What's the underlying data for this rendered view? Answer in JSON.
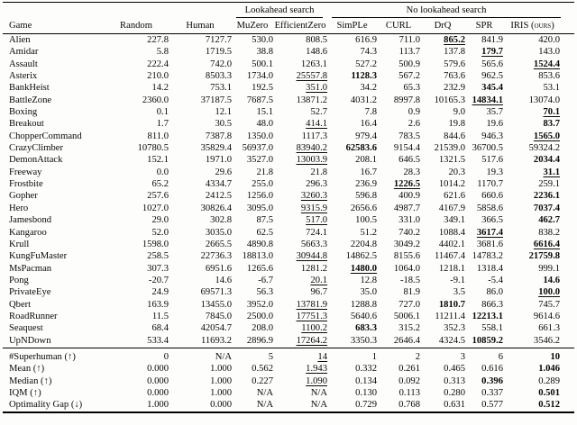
{
  "table": {
    "group_header": {
      "lookahead": "Lookahead search",
      "no_lookahead": "No lookahead search"
    },
    "columns": [
      "Game",
      "Random",
      "Human",
      "MuZero",
      "EfficientZero",
      "SimPLe",
      "CURL",
      "DrQ",
      "SPR",
      "IRIS (ours)"
    ],
    "rows": [
      {
        "cells": [
          "Alien",
          "227.8",
          "7127.7",
          "530.0",
          "808.5",
          "616.9",
          "711.0",
          "865.2",
          "841.9",
          "420.0"
        ],
        "styles": [
          "",
          "",
          "",
          "",
          "",
          "",
          "",
          "bu",
          "",
          ""
        ]
      },
      {
        "cells": [
          "Amidar",
          "5.8",
          "1719.5",
          "38.8",
          "148.6",
          "74.3",
          "113.7",
          "137.8",
          "179.7",
          "143.0"
        ],
        "styles": [
          "",
          "",
          "",
          "",
          "",
          "",
          "",
          "",
          "bu",
          ""
        ]
      },
      {
        "cells": [
          "Assault",
          "222.4",
          "742.0",
          "500.1",
          "1263.1",
          "527.2",
          "500.9",
          "579.6",
          "565.6",
          "1524.4"
        ],
        "styles": [
          "",
          "",
          "",
          "",
          "",
          "",
          "",
          "",
          "",
          "bu"
        ]
      },
      {
        "cells": [
          "Asterix",
          "210.0",
          "8503.3",
          "1734.0",
          "25557.8",
          "1128.3",
          "567.2",
          "763.6",
          "962.5",
          "853.6"
        ],
        "styles": [
          "",
          "",
          "",
          "",
          "u",
          "b",
          "",
          "",
          "",
          ""
        ]
      },
      {
        "cells": [
          "BankHeist",
          "14.2",
          "753.1",
          "192.5",
          "351.0",
          "34.2",
          "65.3",
          "232.9",
          "345.4",
          "53.1"
        ],
        "styles": [
          "",
          "",
          "",
          "",
          "u",
          "",
          "",
          "",
          "b",
          ""
        ]
      },
      {
        "cells": [
          "BattleZone",
          "2360.0",
          "37187.5",
          "7687.5",
          "13871.2",
          "4031.2",
          "8997.8",
          "10165.3",
          "14834.1",
          "13074.0"
        ],
        "styles": [
          "",
          "",
          "",
          "",
          "",
          "",
          "",
          "",
          "bu",
          ""
        ]
      },
      {
        "cells": [
          "Boxing",
          "0.1",
          "12.1",
          "15.1",
          "52.7",
          "7.8",
          "0.9",
          "9.0",
          "35.7",
          "70.1"
        ],
        "styles": [
          "",
          "",
          "",
          "",
          "",
          "",
          "",
          "",
          "",
          "bu"
        ]
      },
      {
        "cells": [
          "Breakout",
          "1.7",
          "30.5",
          "48.0",
          "414.1",
          "16.4",
          "2.6",
          "19.8",
          "19.6",
          "83.7"
        ],
        "styles": [
          "",
          "",
          "",
          "",
          "u",
          "",
          "",
          "",
          "",
          "b"
        ]
      },
      {
        "cells": [
          "ChopperCommand",
          "811.0",
          "7387.8",
          "1350.0",
          "1117.3",
          "979.4",
          "783.5",
          "844.6",
          "946.3",
          "1565.0"
        ],
        "styles": [
          "",
          "",
          "",
          "",
          "",
          "",
          "",
          "",
          "",
          "bu"
        ]
      },
      {
        "cells": [
          "CrazyClimber",
          "10780.5",
          "35829.4",
          "56937.0",
          "83940.2",
          "62583.6",
          "9154.4",
          "21539.0",
          "36700.5",
          "59324.2"
        ],
        "styles": [
          "",
          "",
          "",
          "",
          "u",
          "b",
          "",
          "",
          "",
          ""
        ]
      },
      {
        "cells": [
          "DemonAttack",
          "152.1",
          "1971.0",
          "3527.0",
          "13003.9",
          "208.1",
          "646.5",
          "1321.5",
          "517.6",
          "2034.4"
        ],
        "styles": [
          "",
          "",
          "",
          "",
          "u",
          "",
          "",
          "",
          "",
          "b"
        ]
      },
      {
        "cells": [
          "Freeway",
          "0.0",
          "29.6",
          "21.8",
          "21.8",
          "16.7",
          "28.3",
          "20.3",
          "19.3",
          "31.1"
        ],
        "styles": [
          "",
          "",
          "",
          "",
          "",
          "",
          "",
          "",
          "",
          "bu"
        ]
      },
      {
        "cells": [
          "Frostbite",
          "65.2",
          "4334.7",
          "255.0",
          "296.3",
          "236.9",
          "1226.5",
          "1014.2",
          "1170.7",
          "259.1"
        ],
        "styles": [
          "",
          "",
          "",
          "",
          "",
          "",
          "bu",
          "",
          "",
          ""
        ]
      },
      {
        "cells": [
          "Gopher",
          "257.6",
          "2412.5",
          "1256.0",
          "3260.3",
          "596.8",
          "400.9",
          "621.6",
          "660.6",
          "2236.1"
        ],
        "styles": [
          "",
          "",
          "",
          "",
          "u",
          "",
          "",
          "",
          "",
          "b"
        ]
      },
      {
        "cells": [
          "Hero",
          "1027.0",
          "30826.4",
          "3095.0",
          "9315.9",
          "2656.6",
          "4987.7",
          "4167.9",
          "5858.6",
          "7037.4"
        ],
        "styles": [
          "",
          "",
          "",
          "",
          "u",
          "",
          "",
          "",
          "",
          "b"
        ]
      },
      {
        "cells": [
          "Jamesbond",
          "29.0",
          "302.8",
          "87.5",
          "517.0",
          "100.5",
          "331.0",
          "349.1",
          "366.5",
          "462.7"
        ],
        "styles": [
          "",
          "",
          "",
          "",
          "u",
          "",
          "",
          "",
          "",
          "b"
        ]
      },
      {
        "cells": [
          "Kangaroo",
          "52.0",
          "3035.0",
          "62.5",
          "724.1",
          "51.2",
          "740.2",
          "1088.4",
          "3617.4",
          "838.2"
        ],
        "styles": [
          "",
          "",
          "",
          "",
          "",
          "",
          "",
          "",
          "bu",
          ""
        ]
      },
      {
        "cells": [
          "Krull",
          "1598.0",
          "2665.5",
          "4890.8",
          "5663.3",
          "2204.8",
          "3049.2",
          "4402.1",
          "3681.6",
          "6616.4"
        ],
        "styles": [
          "",
          "",
          "",
          "",
          "",
          "",
          "",
          "",
          "",
          "bu"
        ]
      },
      {
        "cells": [
          "KungFuMaster",
          "258.5",
          "22736.3",
          "18813.0",
          "30944.8",
          "14862.5",
          "8155.6",
          "11467.4",
          "14783.2",
          "21759.8"
        ],
        "styles": [
          "",
          "",
          "",
          "",
          "u",
          "",
          "",
          "",
          "",
          "b"
        ]
      },
      {
        "cells": [
          "MsPacman",
          "307.3",
          "6951.6",
          "1265.6",
          "1281.2",
          "1480.0",
          "1064.0",
          "1218.1",
          "1318.4",
          "999.1"
        ],
        "styles": [
          "",
          "",
          "",
          "",
          "",
          "bu",
          "",
          "",
          "",
          ""
        ]
      },
      {
        "cells": [
          "Pong",
          "-20.7",
          "14.6",
          "-6.7",
          "20.1",
          "12.8",
          "-18.5",
          "-9.1",
          "-5.4",
          "14.6"
        ],
        "styles": [
          "",
          "",
          "",
          "",
          "u",
          "",
          "",
          "",
          "",
          "b"
        ]
      },
      {
        "cells": [
          "PrivateEye",
          "24.9",
          "69571.3",
          "56.3",
          "96.7",
          "35.0",
          "81.9",
          "3.5",
          "86.0",
          "100.0"
        ],
        "styles": [
          "",
          "",
          "",
          "",
          "",
          "",
          "",
          "",
          "",
          "bu"
        ]
      },
      {
        "cells": [
          "Qbert",
          "163.9",
          "13455.0",
          "3952.0",
          "13781.9",
          "1288.8",
          "727.0",
          "1810.7",
          "866.3",
          "745.7"
        ],
        "styles": [
          "",
          "",
          "",
          "",
          "u",
          "",
          "",
          "b",
          "",
          ""
        ]
      },
      {
        "cells": [
          "RoadRunner",
          "11.5",
          "7845.0",
          "2500.0",
          "17751.3",
          "5640.6",
          "5006.1",
          "11211.4",
          "12213.1",
          "9614.6"
        ],
        "styles": [
          "",
          "",
          "",
          "",
          "u",
          "",
          "",
          "",
          "b",
          ""
        ]
      },
      {
        "cells": [
          "Seaquest",
          "68.4",
          "42054.7",
          "208.0",
          "1100.2",
          "683.3",
          "315.2",
          "352.3",
          "558.1",
          "661.3"
        ],
        "styles": [
          "",
          "",
          "",
          "",
          "u",
          "b",
          "",
          "",
          "",
          ""
        ]
      },
      {
        "cells": [
          "UpNDown",
          "533.4",
          "11693.2",
          "2896.9",
          "17264.2",
          "3350.3",
          "2646.4",
          "4324.5",
          "10859.2",
          "3546.2"
        ],
        "styles": [
          "",
          "",
          "",
          "",
          "u",
          "",
          "",
          "",
          "b",
          ""
        ]
      }
    ],
    "summary_rows": [
      {
        "cells": [
          "#Superhuman (↑)",
          "0",
          "N/A",
          "5",
          "14",
          "1",
          "2",
          "3",
          "6",
          "10"
        ],
        "styles": [
          "",
          "",
          "",
          "",
          "u",
          "",
          "",
          "",
          "",
          "b"
        ]
      },
      {
        "cells": [
          "Mean (↑)",
          "0.000",
          "1.000",
          "0.562",
          "1.943",
          "0.332",
          "0.261",
          "0.465",
          "0.616",
          "1.046"
        ],
        "styles": [
          "",
          "",
          "",
          "",
          "u",
          "",
          "",
          "",
          "",
          "b"
        ]
      },
      {
        "cells": [
          "Median (↑)",
          "0.000",
          "1.000",
          "0.227",
          "1.090",
          "0.134",
          "0.092",
          "0.313",
          "0.396",
          "0.289"
        ],
        "styles": [
          "",
          "",
          "",
          "",
          "u",
          "",
          "",
          "",
          "b",
          ""
        ]
      },
      {
        "cells": [
          "IQM (↑)",
          "0.000",
          "1.000",
          "N/A",
          "N/A",
          "0.130",
          "0.113",
          "0.280",
          "0.337",
          "0.501"
        ],
        "styles": [
          "",
          "",
          "",
          "",
          "",
          "",
          "",
          "",
          "",
          "b"
        ]
      },
      {
        "cells": [
          "Optimality Gap (↓)",
          "1.000",
          "0.000",
          "N/A",
          "N/A",
          "0.729",
          "0.768",
          "0.631",
          "0.577",
          "0.512"
        ],
        "styles": [
          "",
          "",
          "",
          "",
          "",
          "",
          "",
          "",
          "",
          "b"
        ]
      }
    ]
  }
}
